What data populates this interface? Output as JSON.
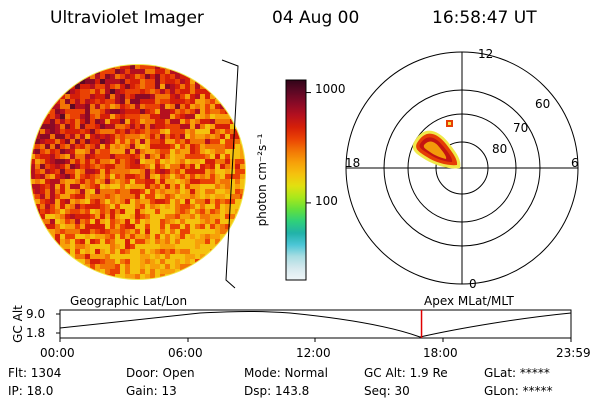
{
  "header": {
    "instrument": "Ultraviolet Imager",
    "date": "04 Aug 00",
    "time": "16:58:47 UT"
  },
  "colorbar": {
    "unit": "photon cm⁻²s⁻¹",
    "ticks": [
      {
        "label": "1000",
        "value": 1000
      },
      {
        "label": "100",
        "value": 100
      }
    ],
    "stops": [
      "#f0f6f8",
      "#d6e9ee",
      "#a8dde2",
      "#4cc6d6",
      "#21b2a8",
      "#2fd07a",
      "#63e03c",
      "#a8e81c",
      "#e2e010",
      "#f5c20e",
      "#f7a009",
      "#f27505",
      "#ea4204",
      "#d51f08",
      "#b4101f",
      "#8a0a26",
      "#5e0824",
      "#310418"
    ]
  },
  "polar_plot": {
    "mlt_labels": [
      "12",
      "18",
      "6",
      "0"
    ],
    "mlat_labels": [
      "60",
      "70",
      "80"
    ]
  },
  "labels": {
    "geographic": "Geographic Lat/Lon",
    "apex": "Apex MLat/MLT"
  },
  "gc_alt_plot": {
    "axis_label": "GC Alt",
    "y_ticks": [
      "9.0",
      "1.8"
    ],
    "x_ticks": [
      "00:00",
      "06:00",
      "12:00",
      "18:00",
      "23:59"
    ],
    "current_time_hours": 16.98
  },
  "status": {
    "flt": "Flt: 1304",
    "ip": "IP: 18.0",
    "door": "Door: Open",
    "gain": "Gain: 13",
    "mode": "Mode: Normal",
    "dsp": "Dsp:  143.8",
    "gc_alt": "GC Alt: 1.9 Re",
    "seq": "Seq: 30",
    "glat": "GLat: *****",
    "glon": "GLon: *****"
  }
}
